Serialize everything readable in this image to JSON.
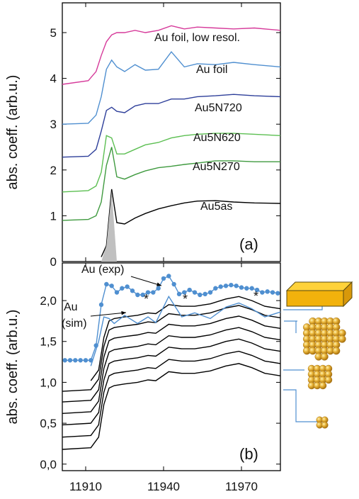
{
  "chart_data": [
    {
      "type": "line",
      "y_label": "abs. coeff. (arb.u.)",
      "annotations": [
        "(a)"
      ],
      "xlim": [
        11901,
        11985
      ],
      "xticks": [
        11910,
        11940,
        11970
      ],
      "ylim": [
        0,
        5.65
      ],
      "yticks": [
        0,
        1,
        2,
        3,
        4,
        5
      ],
      "x": [
        11901,
        11911,
        11914,
        11916,
        11918,
        11920,
        11922,
        11925,
        11929,
        11933,
        11938,
        11943,
        11948,
        11953,
        11960,
        11967,
        11975,
        11985
      ],
      "series": [
        {
          "name": "Au foil, low resol.",
          "color": "#d63a9a",
          "values": [
            3.87,
            3.95,
            4.15,
            4.5,
            4.8,
            4.95,
            5.0,
            5.0,
            5.05,
            5.0,
            5.05,
            5.15,
            5.08,
            5.12,
            5.1,
            5.08,
            5.1,
            5.05
          ]
        },
        {
          "name": "Au foil",
          "color": "#4f8fd0",
          "values": [
            3.0,
            3.02,
            3.2,
            3.6,
            4.2,
            4.4,
            4.25,
            4.15,
            4.3,
            4.18,
            4.2,
            4.58,
            4.25,
            4.32,
            4.3,
            4.35,
            4.3,
            4.25
          ]
        },
        {
          "name": "Au5N720",
          "color": "#2e3f9a",
          "values": [
            2.28,
            2.3,
            2.45,
            2.85,
            3.3,
            3.37,
            3.28,
            3.25,
            3.4,
            3.45,
            3.45,
            3.55,
            3.55,
            3.6,
            3.62,
            3.65,
            3.62,
            3.6
          ]
        },
        {
          "name": "Au5N620",
          "color": "#5cbf52",
          "values": [
            1.52,
            1.55,
            1.65,
            1.95,
            2.75,
            2.7,
            2.35,
            2.35,
            2.45,
            2.55,
            2.6,
            2.7,
            2.75,
            2.78,
            2.8,
            2.8,
            2.78,
            2.75
          ]
        },
        {
          "name": "Au5N270",
          "color": "#3f9a3f",
          "values": [
            0.9,
            0.92,
            1.0,
            1.3,
            2.1,
            2.5,
            1.85,
            1.8,
            1.9,
            1.98,
            2.05,
            2.08,
            2.12,
            2.15,
            2.2,
            2.2,
            2.18,
            2.18
          ]
        },
        {
          "name": "Au5as",
          "color": "#000000",
          "values": [
            null,
            null,
            null,
            0.1,
            0.35,
            1.58,
            0.85,
            0.82,
            0.95,
            1.05,
            1.15,
            1.22,
            1.28,
            1.32,
            1.33,
            1.3,
            1.28,
            1.27
          ]
        },
        {
          "color": "#c0c0c0",
          "fill": true,
          "values": [
            null,
            null,
            null,
            0,
            0.35,
            1.55,
            0,
            null,
            null,
            null,
            null,
            null,
            null,
            null,
            null,
            null,
            null,
            null
          ]
        }
      ]
    },
    {
      "type": "line",
      "y_label": "abs. coeff. (arb.u.)",
      "annotations": [
        "Au",
        "(sim)",
        "*",
        "*",
        "*",
        "(b)"
      ],
      "xlim": [
        11901,
        11985
      ],
      "xticks": [
        11910,
        11940,
        11970
      ],
      "ylim": [
        -0.08,
        2.46
      ],
      "yticks": [
        {
          "value": 0,
          "label": "0,0"
        },
        {
          "value": 0.5,
          "label": "0,5"
        },
        {
          "value": 1,
          "label": "1,0"
        },
        {
          "value": 1.5,
          "label": "1,5"
        },
        {
          "value": 2,
          "label": "2,0"
        }
      ],
      "x": [
        11901,
        11912,
        11915,
        11917,
        11919,
        11921,
        11925,
        11930,
        11934,
        11937,
        11942,
        11947,
        11952,
        11958,
        11964,
        11969,
        11974,
        11979,
        11985
      ],
      "series": [
        {
          "color": "#000000",
          "values": [
            0.18,
            0.2,
            0.33,
            0.73,
            0.93,
            0.96,
            0.98,
            1.0,
            1.03,
            1.02,
            1.13,
            1.11,
            1.11,
            1.14,
            1.2,
            1.23,
            1.18,
            1.11,
            1.08
          ]
        },
        {
          "color": "#000000",
          "values": [
            0.33,
            0.35,
            0.48,
            0.88,
            1.08,
            1.11,
            1.13,
            1.15,
            1.18,
            1.17,
            1.28,
            1.26,
            1.26,
            1.29,
            1.35,
            1.38,
            1.33,
            1.26,
            1.23
          ]
        },
        {
          "color": "#000000",
          "values": [
            0.48,
            0.5,
            0.63,
            1.03,
            1.23,
            1.26,
            1.28,
            1.3,
            1.33,
            1.32,
            1.43,
            1.41,
            1.41,
            1.44,
            1.5,
            1.53,
            1.48,
            1.41,
            1.38
          ]
        },
        {
          "color": "#000000",
          "values": [
            0.62,
            0.64,
            0.77,
            1.17,
            1.37,
            1.4,
            1.42,
            1.44,
            1.47,
            1.46,
            1.57,
            1.55,
            1.55,
            1.58,
            1.64,
            1.67,
            1.62,
            1.55,
            1.52
          ]
        },
        {
          "color": "#000000",
          "values": [
            0.76,
            0.78,
            0.91,
            1.31,
            1.51,
            1.54,
            1.56,
            1.58,
            1.61,
            1.6,
            1.71,
            1.69,
            1.69,
            1.72,
            1.78,
            1.81,
            1.76,
            1.69,
            1.66
          ]
        },
        {
          "color": "#000000",
          "values": [
            0.89,
            0.91,
            1.04,
            1.44,
            1.64,
            1.67,
            1.69,
            1.71,
            1.74,
            1.73,
            1.84,
            1.82,
            1.82,
            1.85,
            1.91,
            1.94,
            1.89,
            1.82,
            1.79
          ]
        },
        {
          "color": "#000000",
          "values": [
            null,
            1.02,
            1.15,
            1.55,
            1.75,
            1.78,
            1.8,
            1.82,
            1.85,
            1.84,
            1.95,
            1.93,
            1.93,
            1.96,
            2.02,
            2.05,
            2.0,
            1.93,
            1.9
          ]
        },
        {
          "color": "#4f8fd0",
          "values": [
            null,
            1.2,
            1.5,
            1.8,
            1.78,
            1.72,
            1.82,
            1.72,
            1.8,
            1.73,
            2.05,
            1.8,
            1.85,
            1.78,
            1.92,
            1.97,
            1.9,
            1.8,
            1.86
          ]
        },
        {
          "name": "Au (exp)",
          "color": "#4f8fd0",
          "marker": true,
          "x": [
            11902,
            11904,
            11906,
            11908,
            11910,
            11912,
            11914,
            11916,
            11918,
            11920,
            11922,
            11924,
            11926,
            11928,
            11930,
            11932,
            11934,
            11936,
            11938,
            11940,
            11942,
            11944,
            11946,
            11948,
            11950,
            11952,
            11954,
            11956,
            11958,
            11960,
            11962,
            11964,
            11966,
            11968,
            11970,
            11972,
            11974,
            11976,
            11978,
            11980,
            11982,
            11984
          ],
          "values": [
            1.27,
            1.27,
            1.27,
            1.27,
            1.27,
            1.27,
            1.45,
            1.95,
            2.2,
            2.18,
            2.1,
            2.15,
            2.17,
            2.12,
            2.07,
            2.07,
            2.1,
            2.1,
            2.15,
            2.27,
            2.3,
            2.2,
            2.08,
            2.1,
            2.13,
            2.1,
            2.07,
            2.08,
            2.1,
            2.15,
            2.17,
            2.18,
            2.19,
            2.18,
            2.16,
            2.15,
            2.15,
            2.13,
            2.1,
            2.11,
            2.1,
            2.09
          ]
        }
      ]
    }
  ]
}
